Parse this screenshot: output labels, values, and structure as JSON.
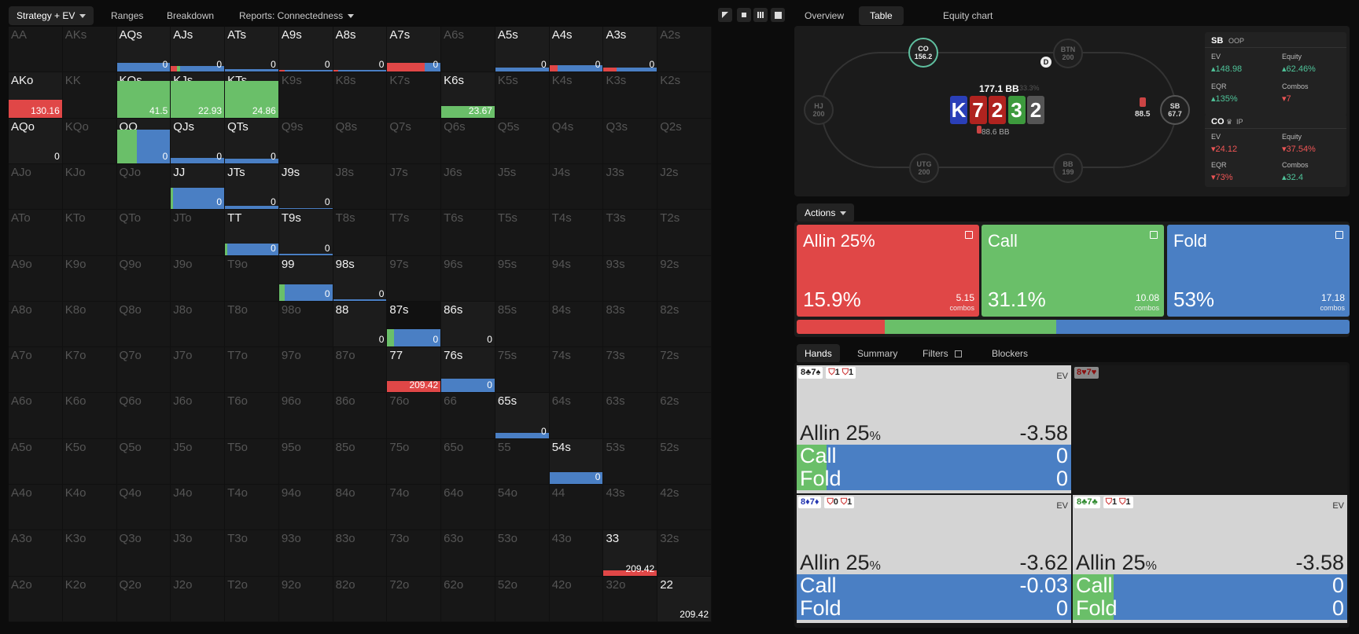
{
  "toolbar": {
    "strategy": "Strategy + EV",
    "ranges": "Ranges",
    "breakdown": "Breakdown",
    "reports": "Reports: Connectedness"
  },
  "right_tabs": {
    "overview": "Overview",
    "table": "Table",
    "equity": "Equity chart"
  },
  "colors": {
    "allin": "#e04747",
    "call": "#6abf69",
    "fold": "#4a7fc4"
  },
  "grid": {
    "labels": [
      [
        "AA",
        "AKs",
        "AQs",
        "AJs",
        "ATs",
        "A9s",
        "A8s",
        "A7s",
        "A6s",
        "A5s",
        "A4s",
        "A3s",
        "A2s"
      ],
      [
        "AKo",
        "KK",
        "KQs",
        "KJs",
        "KTs",
        "K9s",
        "K8s",
        "K7s",
        "K6s",
        "K5s",
        "K4s",
        "K3s",
        "K2s"
      ],
      [
        "AQo",
        "KQo",
        "QQ",
        "QJs",
        "QTs",
        "Q9s",
        "Q8s",
        "Q7s",
        "Q6s",
        "Q5s",
        "Q4s",
        "Q3s",
        "Q2s"
      ],
      [
        "AJo",
        "KJo",
        "QJo",
        "JJ",
        "JTs",
        "J9s",
        "J8s",
        "J7s",
        "J6s",
        "J5s",
        "J4s",
        "J3s",
        "J2s"
      ],
      [
        "ATo",
        "KTo",
        "QTo",
        "JTo",
        "TT",
        "T9s",
        "T8s",
        "T7s",
        "T6s",
        "T5s",
        "T4s",
        "T3s",
        "T2s"
      ],
      [
        "A9o",
        "K9o",
        "Q9o",
        "J9o",
        "T9o",
        "99",
        "98s",
        "97s",
        "96s",
        "95s",
        "94s",
        "93s",
        "92s"
      ],
      [
        "A8o",
        "K8o",
        "Q8o",
        "J8o",
        "T8o",
        "98o",
        "88",
        "87s",
        "86s",
        "85s",
        "84s",
        "83s",
        "82s"
      ],
      [
        "A7o",
        "K7o",
        "Q7o",
        "J7o",
        "T7o",
        "97o",
        "87o",
        "77",
        "76s",
        "75s",
        "74s",
        "73s",
        "72s"
      ],
      [
        "A6o",
        "K6o",
        "Q6o",
        "J6o",
        "T6o",
        "96o",
        "86o",
        "76o",
        "66",
        "65s",
        "64s",
        "63s",
        "62s"
      ],
      [
        "A5o",
        "K5o",
        "Q5o",
        "J5o",
        "T5o",
        "95o",
        "85o",
        "75o",
        "65o",
        "55",
        "54s",
        "53s",
        "52s"
      ],
      [
        "A4o",
        "K4o",
        "Q4o",
        "J4o",
        "T4o",
        "94o",
        "84o",
        "74o",
        "64o",
        "54o",
        "44",
        "43s",
        "42s"
      ],
      [
        "A3o",
        "K3o",
        "Q3o",
        "J3o",
        "T3o",
        "93o",
        "83o",
        "73o",
        "63o",
        "53o",
        "43o",
        "33",
        "32s"
      ],
      [
        "A2o",
        "K2o",
        "Q2o",
        "J2o",
        "T2o",
        "92o",
        "82o",
        "72o",
        "62o",
        "52o",
        "42o",
        "32o",
        "22"
      ]
    ],
    "cells": {
      "0,2": {
        "ev": "0",
        "bar": 0.2,
        "mix": [
          0,
          0,
          1
        ]
      },
      "0,3": {
        "ev": "0",
        "bar": 0.12,
        "mix": [
          0.12,
          0.06,
          0.82
        ]
      },
      "0,4": {
        "ev": "0",
        "bar": 0.05,
        "mix": [
          0,
          0,
          1
        ]
      },
      "0,5": {
        "ev": "0",
        "bar": 0.04,
        "mix": [
          0.1,
          0,
          0.9
        ]
      },
      "0,6": {
        "ev": "0",
        "bar": 0.04,
        "mix": [
          0.1,
          0,
          0.9
        ]
      },
      "0,7": {
        "ev": "0",
        "bar": 0.2,
        "mix": [
          0.7,
          0,
          0.3
        ]
      },
      "0,9": {
        "ev": "0",
        "bar": 0.1,
        "mix": [
          0,
          0,
          1
        ]
      },
      "0,10": {
        "ev": "0",
        "bar": 0.14,
        "mix": [
          0.15,
          0,
          0.85
        ]
      },
      "0,11": {
        "ev": "0",
        "bar": 0.1,
        "mix": [
          0.25,
          0,
          0.75
        ]
      },
      "1,0": {
        "ev": "130.16",
        "bar": 0.4,
        "mix": [
          1,
          0,
          0
        ]
      },
      "1,2": {
        "ev": "41.5",
        "bar": 0.82,
        "mix": [
          0,
          1,
          0
        ]
      },
      "1,3": {
        "ev": "22.93",
        "bar": 0.82,
        "mix": [
          0,
          1,
          0
        ]
      },
      "1,4": {
        "ev": "24.86",
        "bar": 0.82,
        "mix": [
          0,
          1,
          0
        ]
      },
      "1,8": {
        "ev": "23.67",
        "bar": 0.26,
        "mix": [
          0,
          1,
          0
        ]
      },
      "2,0": {
        "ev": "0",
        "bar": 0,
        "mix": [
          0,
          0,
          0
        ]
      },
      "2,2": {
        "ev": "0",
        "bar": 0.75,
        "mix": [
          0,
          0.38,
          0.62
        ]
      },
      "2,3": {
        "ev": "0",
        "bar": 0.12,
        "mix": [
          0,
          0,
          1
        ]
      },
      "2,4": {
        "ev": "0",
        "bar": 0.1,
        "mix": [
          0,
          0,
          1
        ]
      },
      "3,3": {
        "ev": "0",
        "bar": 0.48,
        "mix": [
          0,
          0.04,
          0.96
        ]
      },
      "3,4": {
        "ev": "0",
        "bar": 0.08,
        "mix": [
          0,
          0,
          1
        ]
      },
      "3,5": {
        "ev": "0",
        "bar": 0.03,
        "mix": [
          0,
          0,
          1
        ]
      },
      "4,4": {
        "ev": "0",
        "bar": 0.26,
        "mix": [
          0,
          0.04,
          0.96
        ]
      },
      "4,5": {
        "ev": "0",
        "bar": 0.03,
        "mix": [
          0,
          0,
          1
        ]
      },
      "5,5": {
        "ev": "0",
        "bar": 0.36,
        "mix": [
          0,
          0.1,
          0.9
        ]
      },
      "5,6": {
        "ev": "0",
        "bar": 0.03,
        "mix": [
          0,
          0,
          1
        ]
      },
      "6,6": {
        "ev": "0",
        "bar": 0,
        "mix": [
          0,
          0,
          0
        ]
      },
      "6,7": {
        "ev": "0",
        "bar": 0.38,
        "mix": [
          0,
          0.12,
          0.88
        ],
        "hl": true
      },
      "6,8": {
        "ev": "0",
        "bar": 0,
        "mix": [
          0,
          0,
          0
        ]
      },
      "7,7": {
        "ev": "209.42",
        "bar": 0.25,
        "mix": [
          1,
          0,
          0
        ]
      },
      "7,8": {
        "ev": "0",
        "bar": 0.3,
        "mix": [
          0,
          0,
          1
        ]
      },
      "8,8": {
        "ev": "",
        "bar": 0,
        "mix": [
          0,
          0,
          0
        ],
        "dim": true
      },
      "8,9": {
        "ev": "0",
        "bar": 0.12,
        "mix": [
          0,
          0,
          1
        ]
      },
      "9,10": {
        "ev": "0",
        "bar": 0.26,
        "mix": [
          0,
          0,
          1
        ]
      },
      "11,11": {
        "ev": "209.42",
        "bar": 0.12,
        "mix": [
          1,
          0,
          0
        ]
      },
      "12,12": {
        "ev": "209.42",
        "bar": 0,
        "mix": [
          0,
          0,
          0
        ]
      }
    }
  },
  "table": {
    "seats": [
      {
        "name": "CO",
        "stack": "156.2"
      },
      {
        "name": "BTN",
        "stack": "200"
      },
      {
        "name": "HJ",
        "stack": "200"
      },
      {
        "name": "SB",
        "stack": "67.7"
      },
      {
        "name": "UTG",
        "stack": "200"
      },
      {
        "name": "BB",
        "stack": "199"
      }
    ],
    "pot": "177.1 BB",
    "pot_pct": "33.3%",
    "board": [
      "K",
      "7",
      "2",
      "3",
      "2"
    ],
    "sb_bet": "88.5",
    "co_bet": "88.6 BB",
    "dealer": "D",
    "sb_stats": {
      "title": "SB",
      "pos": "OOP",
      "ev_label": "EV",
      "ev": "148.98",
      "eq_label": "Equity",
      "eq": "62.46%",
      "eqr_label": "EQR",
      "eqr": "135%",
      "combos_label": "Combos",
      "combos": "7"
    },
    "co_stats": {
      "title": "CO",
      "pos": "IP",
      "ev_label": "EV",
      "ev": "24.12",
      "eq_label": "Equity",
      "eq": "37.54%",
      "eqr_label": "EQR",
      "eqr": "73%",
      "combos_label": "Combos",
      "combos": "32.4"
    }
  },
  "actions": {
    "label": "Actions",
    "items": [
      {
        "name": "Allin 25%",
        "pct": "15.9%",
        "combos": "5.15",
        "share": 15.9
      },
      {
        "name": "Call",
        "pct": "31.1%",
        "combos": "10.08",
        "share": 31.1
      },
      {
        "name": "Fold",
        "pct": "53%",
        "combos": "17.18",
        "share": 53
      }
    ],
    "combos_word": "combos"
  },
  "hands": {
    "tabs": {
      "hands": "Hands",
      "summary": "Summary",
      "filters": "Filters",
      "blockers": "Blockers"
    },
    "ev_word": "EV",
    "cards": [
      {
        "combo": "8♣7♠",
        "b1": "1",
        "b2": "1",
        "allin": "Allin 25",
        "allin_ev": "-3.58",
        "call": "Call",
        "call_ev": "0",
        "fold": "Fold",
        "fold_ev": "0",
        "call_frac": 0.11
      },
      {
        "combo": "8♥7♥",
        "b1": "",
        "b2": "",
        "dark": true
      },
      {
        "combo": "8♦7♦",
        "b1": "0",
        "b2": "1",
        "allin": "Allin 25",
        "allin_ev": "-3.62",
        "call": "Call",
        "call_ev": "-0.03",
        "fold": "Fold",
        "fold_ev": "0",
        "call_frac": 0
      },
      {
        "combo": "8♣7♣",
        "b1": "1",
        "b2": "1",
        "allin": "Allin 25",
        "allin_ev": "-3.58",
        "call": "Call",
        "call_ev": "0",
        "fold": "Fold",
        "fold_ev": "0",
        "call_frac": 0.15
      }
    ]
  }
}
